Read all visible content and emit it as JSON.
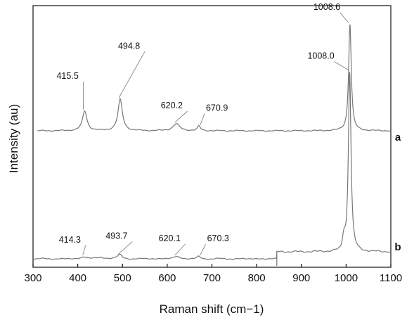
{
  "chart_data": {
    "type": "line",
    "title": "",
    "xlabel": "Raman shift (cm−1)",
    "ylabel": "Intensity (au)",
    "xlim": [
      300,
      1100
    ],
    "xticks": [
      300,
      400,
      500,
      600,
      700,
      800,
      900,
      1000,
      1100
    ],
    "xtick_labels": [
      "300",
      "400",
      "500",
      "600",
      "700",
      "800",
      "900",
      "1000",
      "1100"
    ],
    "grid": false,
    "legend": "none",
    "line_color": "#777777",
    "series": [
      {
        "name": "a",
        "baseline": 0,
        "peaks": [
          {
            "x": 415.5,
            "label": "415.5",
            "height": 0.17
          },
          {
            "x": 494.8,
            "label": "494.8",
            "height": 0.27
          },
          {
            "x": 620.2,
            "label": "620.2",
            "height": 0.06
          },
          {
            "x": 670.9,
            "label": "670.9",
            "height": 0.04
          },
          {
            "x": 1008.6,
            "label": "1008.6",
            "height": 0.92
          }
        ]
      },
      {
        "name": "b",
        "baseline": 0,
        "peaks": [
          {
            "x": 414.3,
            "label": "414.3",
            "height": 0.02
          },
          {
            "x": 493.7,
            "label": "493.7",
            "height": 0.03
          },
          {
            "x": 620.1,
            "label": "620.1",
            "height": 0.02
          },
          {
            "x": 670.3,
            "label": "670.3",
            "height": 0.02
          },
          {
            "x": 1008.0,
            "label": "1008.0",
            "height": 0.95
          }
        ]
      }
    ]
  }
}
